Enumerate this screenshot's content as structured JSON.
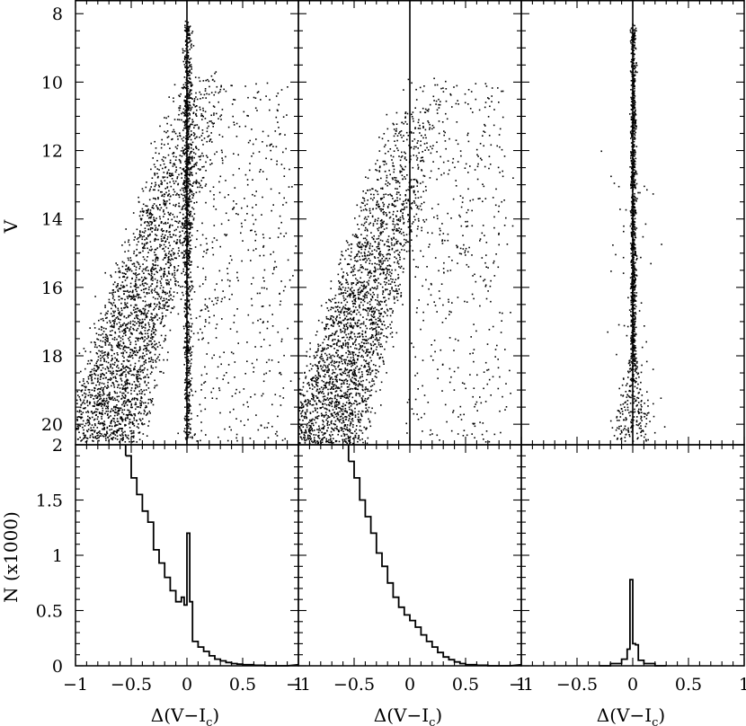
{
  "chart_data": [
    {
      "type": "scatter",
      "panel": "top-left",
      "ylabel": "V",
      "xlim": [
        -1,
        1
      ],
      "ylim": [
        20.6,
        7.6
      ],
      "y_inverted": true,
      "yticks": [
        "8",
        "10",
        "12",
        "14",
        "16",
        "18",
        "20"
      ],
      "vertical_line_x": 0,
      "description_points": [
        {
          "x": -0.95,
          "y": 19.5
        },
        {
          "x": -0.8,
          "y": 18.5
        },
        {
          "x": -0.65,
          "y": 17.5
        },
        {
          "x": -0.5,
          "y": 16.5
        },
        {
          "x": -0.35,
          "y": 15.0
        },
        {
          "x": -0.2,
          "y": 13.5
        },
        {
          "x": -0.05,
          "y": 12.0
        },
        {
          "x": 0.0,
          "y": 9.0
        },
        {
          "x": 0.0,
          "y": 14.0
        },
        {
          "x": 0.0,
          "y": 19.0
        },
        {
          "x": 0.2,
          "y": 17.0
        },
        {
          "x": 0.45,
          "y": 15.5
        },
        {
          "x": 0.75,
          "y": 11.0
        }
      ]
    },
    {
      "type": "scatter",
      "panel": "top-middle",
      "xlim": [
        -1,
        1
      ],
      "ylim": [
        20.6,
        7.6
      ],
      "y_inverted": true,
      "vertical_line_x": 0,
      "description_points": [
        {
          "x": -0.95,
          "y": 19.5
        },
        {
          "x": -0.8,
          "y": 18.0
        },
        {
          "x": -0.6,
          "y": 16.5
        },
        {
          "x": -0.45,
          "y": 15.0
        },
        {
          "x": -0.3,
          "y": 14.0
        },
        {
          "x": -0.15,
          "y": 12.5
        },
        {
          "x": 0.0,
          "y": 10.5
        },
        {
          "x": 0.15,
          "y": 16.5
        },
        {
          "x": 0.35,
          "y": 14.5
        },
        {
          "x": 0.6,
          "y": 11.5
        }
      ]
    },
    {
      "type": "scatter",
      "panel": "top-right",
      "xlim": [
        -1,
        1
      ],
      "ylim": [
        20.6,
        7.6
      ],
      "y_inverted": true,
      "vertical_line_x": 0,
      "description_points": [
        {
          "x": 0.0,
          "y": 8.3
        },
        {
          "x": 0.0,
          "y": 12.0
        },
        {
          "x": 0.0,
          "y": 16.0
        },
        {
          "x": -0.05,
          "y": 19.5
        },
        {
          "x": 0.05,
          "y": 20.0
        },
        {
          "x": 0.2,
          "y": 20.3
        }
      ]
    },
    {
      "type": "line",
      "panel": "bottom-left",
      "style": "step-histogram",
      "xlabel": "Δ(V−I_c)",
      "ylabel": "N (x1000)",
      "xlim": [
        -1,
        1
      ],
      "ylim": [
        0,
        2
      ],
      "bin_edges": [
        -0.55,
        -0.5,
        -0.45,
        -0.4,
        -0.35,
        -0.3,
        -0.25,
        -0.2,
        -0.15,
        -0.1,
        -0.05,
        -0.025,
        0.0,
        0.025,
        0.05,
        0.1,
        0.15,
        0.2,
        0.25,
        0.3,
        0.35,
        0.4,
        0.45,
        0.5,
        0.6,
        0.7,
        0.9
      ],
      "values": [
        1.9,
        1.7,
        1.55,
        1.4,
        1.3,
        1.05,
        0.93,
        0.8,
        0.68,
        0.58,
        0.62,
        0.55,
        1.2,
        0.58,
        0.22,
        0.17,
        0.13,
        0.09,
        0.06,
        0.045,
        0.03,
        0.02,
        0.015,
        0.01,
        0.005,
        0.0
      ]
    },
    {
      "type": "line",
      "panel": "bottom-middle",
      "style": "step-histogram",
      "xlabel": "Δ(V−I_c)",
      "xlim": [
        -1,
        1
      ],
      "ylim": [
        0,
        2
      ],
      "bin_edges": [
        -0.55,
        -0.5,
        -0.45,
        -0.4,
        -0.35,
        -0.3,
        -0.25,
        -0.2,
        -0.15,
        -0.1,
        -0.05,
        0.0,
        0.05,
        0.1,
        0.15,
        0.2,
        0.25,
        0.3,
        0.35,
        0.4,
        0.45,
        0.5,
        0.6,
        0.7,
        0.9
      ],
      "values": [
        1.85,
        1.7,
        1.5,
        1.35,
        1.2,
        1.02,
        0.9,
        0.75,
        0.62,
        0.53,
        0.46,
        0.41,
        0.35,
        0.28,
        0.22,
        0.17,
        0.12,
        0.08,
        0.055,
        0.035,
        0.02,
        0.01,
        0.005,
        0.0
      ]
    },
    {
      "type": "line",
      "panel": "bottom-right",
      "style": "step-histogram",
      "xlabel": "Δ(V−I_c)",
      "xlim": [
        -1,
        1
      ],
      "ylim": [
        0,
        2
      ],
      "bin_edges": [
        -0.3,
        -0.2,
        -0.1,
        -0.05,
        -0.025,
        0.0,
        0.025,
        0.05,
        0.1,
        0.2,
        0.3
      ],
      "values": [
        0.0,
        0.02,
        0.06,
        0.15,
        0.78,
        0.2,
        0.19,
        0.05,
        0.02,
        0.0
      ]
    }
  ],
  "labels": {
    "y_top": "V",
    "y_bottom": "N (x1000)",
    "x_axis": "Δ(V−I",
    "x_axis_sub": "c",
    "x_axis_close": ")"
  },
  "ticks": {
    "x": [
      "−1",
      "−0.5",
      "0",
      "0.5",
      "1"
    ],
    "y_top": [
      "8",
      "10",
      "12",
      "14",
      "16",
      "18",
      "20"
    ],
    "y_bottom": [
      "0",
      "0.5",
      "1",
      "1.5",
      "2"
    ]
  }
}
